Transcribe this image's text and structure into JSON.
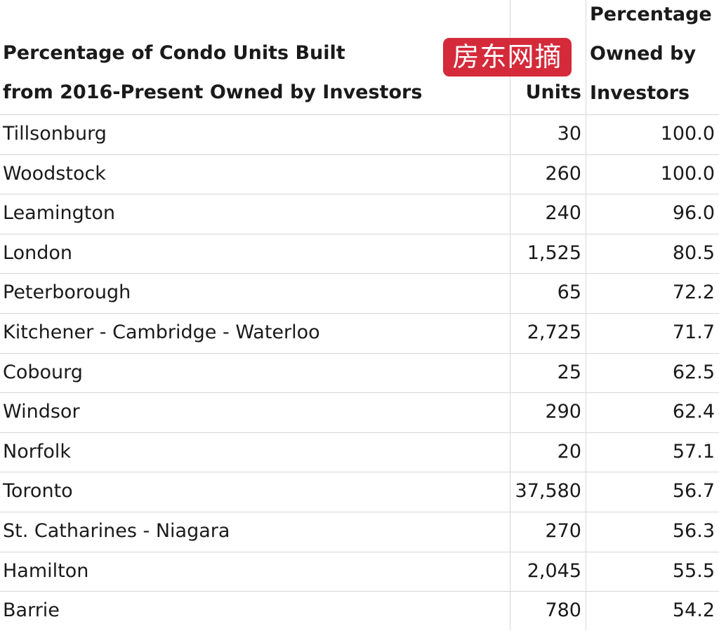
{
  "header": {
    "title_line1": "Percentage of Condo Units Built",
    "title_line2": "from 2016-Present Owned by Investors",
    "units": "Units",
    "pct_line1": "Percentage",
    "pct_line2": "Owned by",
    "pct_line3": "Investors"
  },
  "watermark": "房东网摘",
  "colors": {
    "badge": "#d42a3a",
    "grid": "#d6d6d6"
  },
  "chart_data": {
    "type": "table",
    "columns": [
      "Units",
      "Percentage Owned by Investors"
    ],
    "rows": [
      {
        "name": "Tillsonburg",
        "units": "30",
        "pct": "100.0"
      },
      {
        "name": "Woodstock",
        "units": "260",
        "pct": "100.0"
      },
      {
        "name": "Leamington",
        "units": "240",
        "pct": "96.0"
      },
      {
        "name": "London",
        "units": "1,525",
        "pct": "80.5"
      },
      {
        "name": "Peterborough",
        "units": "65",
        "pct": "72.2"
      },
      {
        "name": "Kitchener - Cambridge - Waterloo",
        "units": "2,725",
        "pct": "71.7"
      },
      {
        "name": "Cobourg",
        "units": "25",
        "pct": "62.5"
      },
      {
        "name": "Windsor",
        "units": "290",
        "pct": "62.4"
      },
      {
        "name": "Norfolk",
        "units": "20",
        "pct": "57.1"
      },
      {
        "name": "Toronto",
        "units": "37,580",
        "pct": "56.7"
      },
      {
        "name": "St. Catharines - Niagara",
        "units": "270",
        "pct": "56.3"
      },
      {
        "name": "Hamilton",
        "units": "2,045",
        "pct": "55.5"
      },
      {
        "name": "Barrie",
        "units": "780",
        "pct": "54.2"
      }
    ]
  }
}
